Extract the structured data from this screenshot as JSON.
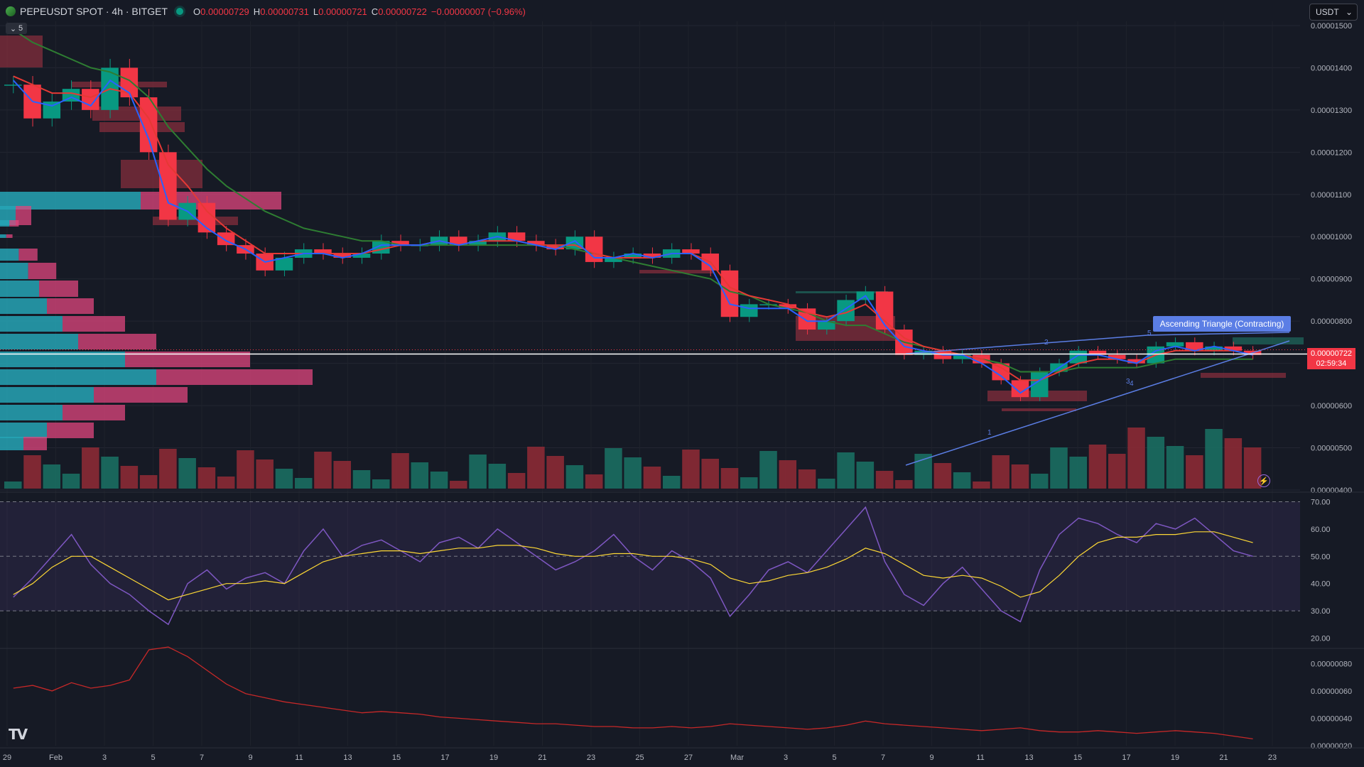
{
  "header": {
    "symbol": "PEPEUSDT SPOT · 4h · BITGET",
    "open_label": "O",
    "open": "0.00000729",
    "high_label": "H",
    "high": "0.00000731",
    "low_label": "L",
    "low": "0.00000721",
    "close_label": "C",
    "close": "0.00000722",
    "change": "−0.00000007 (−0.96%)"
  },
  "indicator_toggle": {
    "count": "5"
  },
  "currency_select": {
    "value": "USDT"
  },
  "current_price": {
    "value": "0.00000722",
    "countdown": "02:59:34"
  },
  "pattern": {
    "label": "Ascending Triangle (Contracting)",
    "points": [
      "2",
      "5",
      "3",
      "4",
      "1"
    ]
  },
  "logo": {
    "text": "TV"
  },
  "colors": {
    "bg": "#161a25",
    "up": "#089981",
    "down": "#f23645",
    "ema_fast": "#2962ff",
    "ema_mid": "#e53935",
    "ema_slow": "#2e7d32",
    "rsi": "#7e57c2",
    "rsi_ma": "#fdd835",
    "pattern": "#5b7ee5"
  },
  "chart_data": [
    {
      "type": "candlestick",
      "name": "price",
      "y_axis_labels": [
        "0.00001500",
        "0.00001400",
        "0.00001300",
        "0.00001200",
        "0.00001100",
        "0.00001000",
        "0.00000900",
        "0.00000800",
        "0.00000700",
        "0.00000600",
        "0.00000500",
        "0.00000400"
      ],
      "ylim": [
        4e-06,
        1.51e-05
      ],
      "x_tick_labels": [
        "29",
        "Feb",
        "3",
        "5",
        "7",
        "9",
        "11",
        "13",
        "15",
        "17",
        "19",
        "21",
        "23",
        "25",
        "27",
        "Mar",
        "3",
        "5",
        "7",
        "9",
        "11",
        "13",
        "15",
        "17",
        "19",
        "21",
        "23"
      ],
      "close_path": [
        1.36e-05,
        1.28e-05,
        1.32e-05,
        1.35e-05,
        1.3e-05,
        1.4e-05,
        1.33e-05,
        1.2e-05,
        1.04e-05,
        1.08e-05,
        1.01e-05,
        9.8e-06,
        9.6e-06,
        9.2e-06,
        9.5e-06,
        9.7e-06,
        9.6e-06,
        9.5e-06,
        9.6e-06,
        9.9e-06,
        9.8e-06,
        9.8e-06,
        1e-05,
        9.8e-06,
        9.9e-06,
        1.01e-05,
        9.9e-06,
        9.8e-06,
        9.7e-06,
        1e-05,
        9.4e-06,
        9.5e-06,
        9.6e-06,
        9.5e-06,
        9.7e-06,
        9.6e-06,
        9.2e-06,
        8.1e-06,
        8.4e-06,
        8.4e-06,
        8.3e-06,
        7.8e-06,
        8e-06,
        8.5e-06,
        8.7e-06,
        7.8e-06,
        7.2e-06,
        7.3e-06,
        7.1e-06,
        7.2e-06,
        7e-06,
        6.6e-06,
        6.2e-06,
        6.8e-06,
        7e-06,
        7.3e-06,
        7.2e-06,
        7.1e-06,
        7e-06,
        7.4e-06,
        7.5e-06,
        7.3e-06,
        7.4e-06,
        7.3e-06,
        7.2e-06
      ],
      "ema_fast_path": [
        1.37e-05,
        1.32e-05,
        1.31e-05,
        1.33e-05,
        1.31e-05,
        1.37e-05,
        1.34e-05,
        1.23e-05,
        1.08e-05,
        1.06e-05,
        1.02e-05,
        9.9e-06,
        9.7e-06,
        9.4e-06,
        9.5e-06,
        9.6e-06,
        9.6e-06,
        9.5e-06,
        9.6e-06,
        9.8e-06,
        9.8e-06,
        9.8e-06,
        9.9e-06,
        9.8e-06,
        9.9e-06,
        1e-05,
        9.9e-06,
        9.8e-06,
        9.7e-06,
        9.9e-06,
        9.5e-06,
        9.5e-06,
        9.6e-06,
        9.5e-06,
        9.6e-06,
        9.6e-06,
        9.3e-06,
        8.4e-06,
        8.3e-06,
        8.3e-06,
        8.3e-06,
        8e-06,
        8e-06,
        8.3e-06,
        8.6e-06,
        7.9e-06,
        7.4e-06,
        7.3e-06,
        7.2e-06,
        7.2e-06,
        7e-06,
        6.7e-06,
        6.3e-06,
        6.6e-06,
        6.9e-06,
        7.2e-06,
        7.2e-06,
        7.1e-06,
        7e-06,
        7.3e-06,
        7.4e-06,
        7.3e-06,
        7.4e-06,
        7.3e-06,
        7.2e-06
      ],
      "ema_mid_path": [
        1.38e-05,
        1.36e-05,
        1.34e-05,
        1.34e-05,
        1.33e-05,
        1.35e-05,
        1.34e-05,
        1.28e-05,
        1.17e-05,
        1.12e-05,
        1.06e-05,
        1.02e-05,
        9.9e-06,
        9.6e-06,
        9.6e-06,
        9.6e-06,
        9.6e-06,
        9.6e-06,
        9.6e-06,
        9.7e-06,
        9.8e-06,
        9.8e-06,
        9.9e-06,
        9.8e-06,
        9.9e-06,
        9.9e-06,
        9.9e-06,
        9.8e-06,
        9.8e-06,
        9.8e-06,
        9.6e-06,
        9.5e-06,
        9.5e-06,
        9.5e-06,
        9.6e-06,
        9.6e-06,
        9.4e-06,
        8.8e-06,
        8.6e-06,
        8.5e-06,
        8.4e-06,
        8.2e-06,
        8.1e-06,
        8.2e-06,
        8.4e-06,
        8e-06,
        7.6e-06,
        7.4e-06,
        7.3e-06,
        7.2e-06,
        7.1e-06,
        6.9e-06,
        6.6e-06,
        6.6e-06,
        6.8e-06,
        7e-06,
        7.1e-06,
        7.1e-06,
        7e-06,
        7.2e-06,
        7.3e-06,
        7.3e-06,
        7.3e-06,
        7.3e-06,
        7.2e-06
      ],
      "ema_slow_path": [
        1.49e-05,
        1.46e-05,
        1.44e-05,
        1.42e-05,
        1.4e-05,
        1.39e-05,
        1.37e-05,
        1.33e-05,
        1.26e-05,
        1.21e-05,
        1.16e-05,
        1.12e-05,
        1.09e-05,
        1.06e-05,
        1.04e-05,
        1.02e-05,
        1.01e-05,
        1e-05,
        9.9e-06,
        9.9e-06,
        9.8e-06,
        9.8e-06,
        9.8e-06,
        9.8e-06,
        9.8e-06,
        9.8e-06,
        9.8e-06,
        9.8e-06,
        9.8e-06,
        9.7e-06,
        9.6e-06,
        9.5e-06,
        9.4e-06,
        9.3e-06,
        9.2e-06,
        9.1e-06,
        9e-06,
        8.7e-06,
        8.6e-06,
        8.4e-06,
        8.3e-06,
        8.2e-06,
        8e-06,
        7.9e-06,
        7.9e-06,
        7.7e-06,
        7.5e-06,
        7.4e-06,
        7.3e-06,
        7.2e-06,
        7.1e-06,
        7e-06,
        6.8e-06,
        6.8e-06,
        6.8e-06,
        6.9e-06,
        6.9e-06,
        6.9e-06,
        6.9e-06,
        7e-06,
        7.1e-06,
        7.1e-06,
        7.1e-06,
        7.1e-06,
        7.1e-06
      ]
    },
    {
      "type": "line",
      "name": "RSI",
      "y_axis_labels": [
        "70.00",
        "60.00",
        "50.00",
        "40.00",
        "30.00",
        "20.00"
      ],
      "ylim": [
        17,
        73
      ],
      "bands": [
        30,
        70
      ],
      "values": [
        35,
        42,
        50,
        58,
        47,
        40,
        36,
        30,
        25,
        40,
        45,
        38,
        42,
        44,
        40,
        52,
        60,
        50,
        54,
        56,
        52,
        48,
        55,
        57,
        53,
        60,
        55,
        50,
        45,
        48,
        52,
        58,
        50,
        45,
        52,
        48,
        42,
        28,
        36,
        45,
        48,
        44,
        52,
        60,
        68,
        48,
        36,
        32,
        40,
        46,
        38,
        30,
        26,
        45,
        58,
        64,
        62,
        58,
        55,
        62,
        60,
        64,
        58,
        52,
        50
      ],
      "ma_values": [
        36,
        40,
        46,
        50,
        50,
        46,
        42,
        38,
        34,
        36,
        38,
        40,
        40,
        41,
        40,
        44,
        48,
        50,
        51,
        52,
        52,
        51,
        52,
        53,
        53,
        54,
        54,
        53,
        51,
        50,
        50,
        51,
        51,
        50,
        50,
        49,
        47,
        42,
        40,
        41,
        43,
        44,
        46,
        49,
        53,
        51,
        47,
        43,
        42,
        43,
        42,
        39,
        35,
        37,
        43,
        50,
        55,
        57,
        57,
        58,
        58,
        59,
        59,
        57,
        55
      ]
    },
    {
      "type": "line",
      "name": "lower_indicator",
      "y_axis_labels": [
        "0.00000080",
        "0.00000060",
        "0.00000040",
        "0.00000020"
      ],
      "ylim": [
        2e-07,
        9e-07
      ],
      "values": [
        6.2e-07,
        6.4e-07,
        6e-07,
        6.6e-07,
        6.2e-07,
        6.4e-07,
        6.8e-07,
        9e-07,
        9.2e-07,
        8.5e-07,
        7.5e-07,
        6.5e-07,
        5.8e-07,
        5.5e-07,
        5.2e-07,
        5e-07,
        4.8e-07,
        4.6e-07,
        4.4e-07,
        4.5e-07,
        4.4e-07,
        4.3e-07,
        4.1e-07,
        4e-07,
        3.9e-07,
        3.8e-07,
        3.7e-07,
        3.6e-07,
        3.6e-07,
        3.5e-07,
        3.4e-07,
        3.4e-07,
        3.3e-07,
        3.3e-07,
        3.4e-07,
        3.3e-07,
        3.4e-07,
        3.6e-07,
        3.5e-07,
        3.4e-07,
        3.3e-07,
        3.2e-07,
        3.3e-07,
        3.5e-07,
        3.8e-07,
        3.6e-07,
        3.5e-07,
        3.4e-07,
        3.3e-07,
        3.2e-07,
        3.1e-07,
        3.2e-07,
        3.3e-07,
        3.1e-07,
        3e-07,
        3e-07,
        3.1e-07,
        3e-07,
        2.9e-07,
        3e-07,
        3.1e-07,
        3e-07,
        2.9e-07,
        2.7e-07,
        2.5e-07
      ]
    }
  ]
}
